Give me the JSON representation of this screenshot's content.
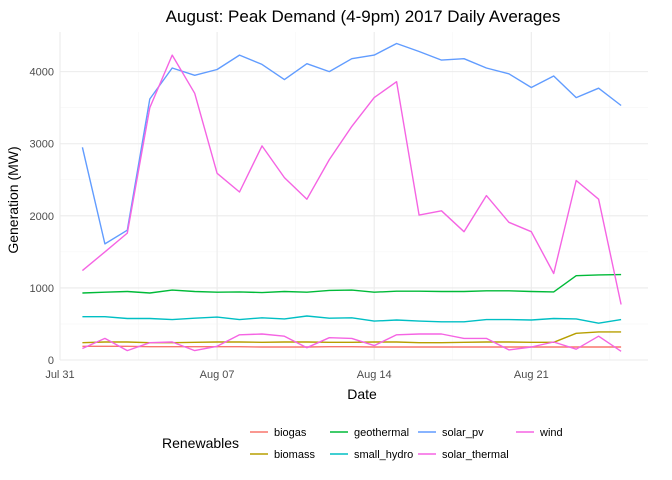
{
  "chart_data": {
    "type": "line",
    "title": "August: Peak Demand (4-9pm) 2017 Daily Averages",
    "xlabel": "Date",
    "ylabel": "Generation (MW)",
    "x": [
      "2017-08-01",
      "2017-08-02",
      "2017-08-03",
      "2017-08-04",
      "2017-08-05",
      "2017-08-06",
      "2017-08-07",
      "2017-08-08",
      "2017-08-09",
      "2017-08-10",
      "2017-08-11",
      "2017-08-12",
      "2017-08-13",
      "2017-08-14",
      "2017-08-15",
      "2017-08-16",
      "2017-08-17",
      "2017-08-18",
      "2017-08-19",
      "2017-08-20",
      "2017-08-21",
      "2017-08-22",
      "2017-08-23",
      "2017-08-24",
      "2017-08-25"
    ],
    "xlim_days": [
      0,
      26.2
    ],
    "x_ticks": [
      {
        "day": 0,
        "label": "Jul 31"
      },
      {
        "day": 7,
        "label": "Aug 07"
      },
      {
        "day": 14,
        "label": "Aug 14"
      },
      {
        "day": 21,
        "label": "Aug 21"
      }
    ],
    "ylim": [
      0,
      4550
    ],
    "y_ticks": [
      0,
      1000,
      2000,
      3000,
      4000
    ],
    "legend_title": "Renewables",
    "legend_position": "bottom",
    "series": [
      {
        "name": "biogas",
        "color": "#F8766D",
        "values": [
          190,
          190,
          190,
          185,
          185,
          185,
          185,
          185,
          180,
          180,
          180,
          185,
          185,
          180,
          180,
          180,
          180,
          180,
          180,
          180,
          180,
          180,
          180,
          180,
          180
        ]
      },
      {
        "name": "biomass",
        "color": "#B79F00",
        "values": [
          240,
          250,
          250,
          240,
          240,
          245,
          250,
          250,
          245,
          250,
          250,
          245,
          245,
          250,
          250,
          240,
          240,
          245,
          250,
          250,
          245,
          245,
          370,
          390,
          390
        ]
      },
      {
        "name": "geothermal",
        "color": "#00BA38",
        "values": [
          930,
          940,
          950,
          930,
          970,
          950,
          940,
          945,
          935,
          950,
          940,
          965,
          970,
          940,
          955,
          955,
          950,
          950,
          960,
          960,
          950,
          945,
          1170,
          1180,
          1185
        ]
      },
      {
        "name": "small_hydro",
        "color": "#00BFC4",
        "values": [
          600,
          600,
          575,
          575,
          560,
          580,
          595,
          560,
          585,
          570,
          610,
          580,
          585,
          540,
          555,
          540,
          530,
          530,
          560,
          560,
          555,
          575,
          570,
          510,
          560
        ]
      },
      {
        "name": "solar_pv",
        "color": "#619CFF",
        "values": [
          2950,
          1610,
          1800,
          3620,
          4050,
          3950,
          4030,
          4230,
          4100,
          3890,
          4110,
          4000,
          4180,
          4230,
          4390,
          4280,
          4160,
          4180,
          4050,
          3970,
          3780,
          3940,
          3640,
          3770,
          3530
        ]
      },
      {
        "name": "solar_thermal",
        "color": "#F564E3",
        "values": [
          160,
          300,
          130,
          240,
          250,
          130,
          190,
          350,
          360,
          330,
          170,
          310,
          300,
          200,
          350,
          360,
          360,
          300,
          300,
          140,
          180,
          250,
          150,
          330,
          120
        ]
      },
      {
        "name": "wind",
        "color": "#F564E3",
        "values": [
          1240,
          1500,
          1760,
          3500,
          4230,
          3700,
          2590,
          2330,
          2970,
          2530,
          2230,
          2780,
          3240,
          3640,
          3860,
          2010,
          2070,
          1780,
          2280,
          1910,
          1780,
          1200,
          2490,
          2230,
          770
        ]
      }
    ]
  }
}
